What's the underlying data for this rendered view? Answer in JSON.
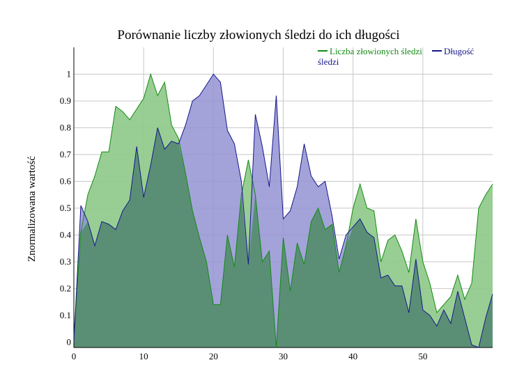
{
  "chart_data": {
    "type": "area",
    "title": "Porównanie liczby złowionych śledzi do ich długości",
    "xlabel": "",
    "ylabel": "Znormalizowana wartość",
    "xlim": [
      0,
      60
    ],
    "ylim": [
      -0.02,
      1.1
    ],
    "grid": true,
    "legend_position": "top-right",
    "x_ticks": [
      0,
      10,
      20,
      30,
      40,
      50
    ],
    "y_ticks": [
      0,
      0.1,
      0.2,
      0.3,
      0.4,
      0.5,
      0.6,
      0.7,
      0.8,
      0.9,
      1
    ],
    "y_tick_labels": [
      "0",
      "0.1",
      "0.2",
      "0.3",
      "0.4",
      "0.5",
      "0.6",
      "0.7",
      "0.8",
      "0.9",
      "1"
    ],
    "x": [
      0,
      1,
      2,
      3,
      4,
      5,
      6,
      7,
      8,
      9,
      10,
      11,
      12,
      13,
      14,
      15,
      16,
      17,
      18,
      19,
      20,
      21,
      22,
      23,
      24,
      25,
      26,
      27,
      28,
      29,
      30,
      31,
      32,
      33,
      34,
      35,
      36,
      37,
      38,
      39,
      40,
      41,
      42,
      43,
      44,
      45,
      46,
      47,
      48,
      49,
      50,
      51,
      52,
      53,
      54,
      55,
      56,
      57,
      58,
      59,
      60
    ],
    "series": [
      {
        "name": "Liczba złowionych śledzi",
        "color": "#138a13",
        "fill": "#8fca8a",
        "values": [
          0.02,
          0.41,
          0.55,
          0.62,
          0.71,
          0.71,
          0.88,
          0.86,
          0.83,
          0.87,
          0.91,
          1.0,
          0.92,
          0.97,
          0.81,
          0.76,
          0.63,
          0.49,
          0.39,
          0.3,
          0.14,
          0.14,
          0.4,
          0.28,
          0.55,
          0.68,
          0.55,
          0.3,
          0.34,
          -0.02,
          0.39,
          0.19,
          0.37,
          0.29,
          0.45,
          0.5,
          0.42,
          0.44,
          0.26,
          0.36,
          0.5,
          0.59,
          0.5,
          0.49,
          0.3,
          0.38,
          0.4,
          0.34,
          0.26,
          0.46,
          0.3,
          0.22,
          0.11,
          0.14,
          0.17,
          0.25,
          0.16,
          0.22,
          0.5,
          0.55,
          0.59
        ]
      },
      {
        "name": "Długość śledzi",
        "color": "#16168a",
        "fill": "#9393d3",
        "values": [
          0.0,
          0.51,
          0.45,
          0.36,
          0.45,
          0.44,
          0.42,
          0.49,
          0.53,
          0.73,
          0.54,
          0.66,
          0.8,
          0.72,
          0.75,
          0.74,
          0.81,
          0.9,
          0.92,
          0.96,
          1.0,
          0.97,
          0.79,
          0.74,
          0.6,
          0.29,
          0.85,
          0.73,
          0.58,
          0.92,
          0.46,
          0.49,
          0.58,
          0.74,
          0.62,
          0.58,
          0.6,
          0.47,
          0.31,
          0.4,
          0.43,
          0.46,
          0.41,
          0.39,
          0.24,
          0.25,
          0.21,
          0.21,
          0.11,
          0.31,
          0.12,
          0.1,
          0.06,
          0.12,
          0.07,
          0.19,
          0.09,
          -0.01,
          -0.02,
          0.09,
          0.18
        ]
      }
    ]
  },
  "legend": {
    "series_1_label": "Liczba złowionych śledzi",
    "series_2_label_line1": "Długość",
    "series_2_label_line2": "śledzi"
  }
}
